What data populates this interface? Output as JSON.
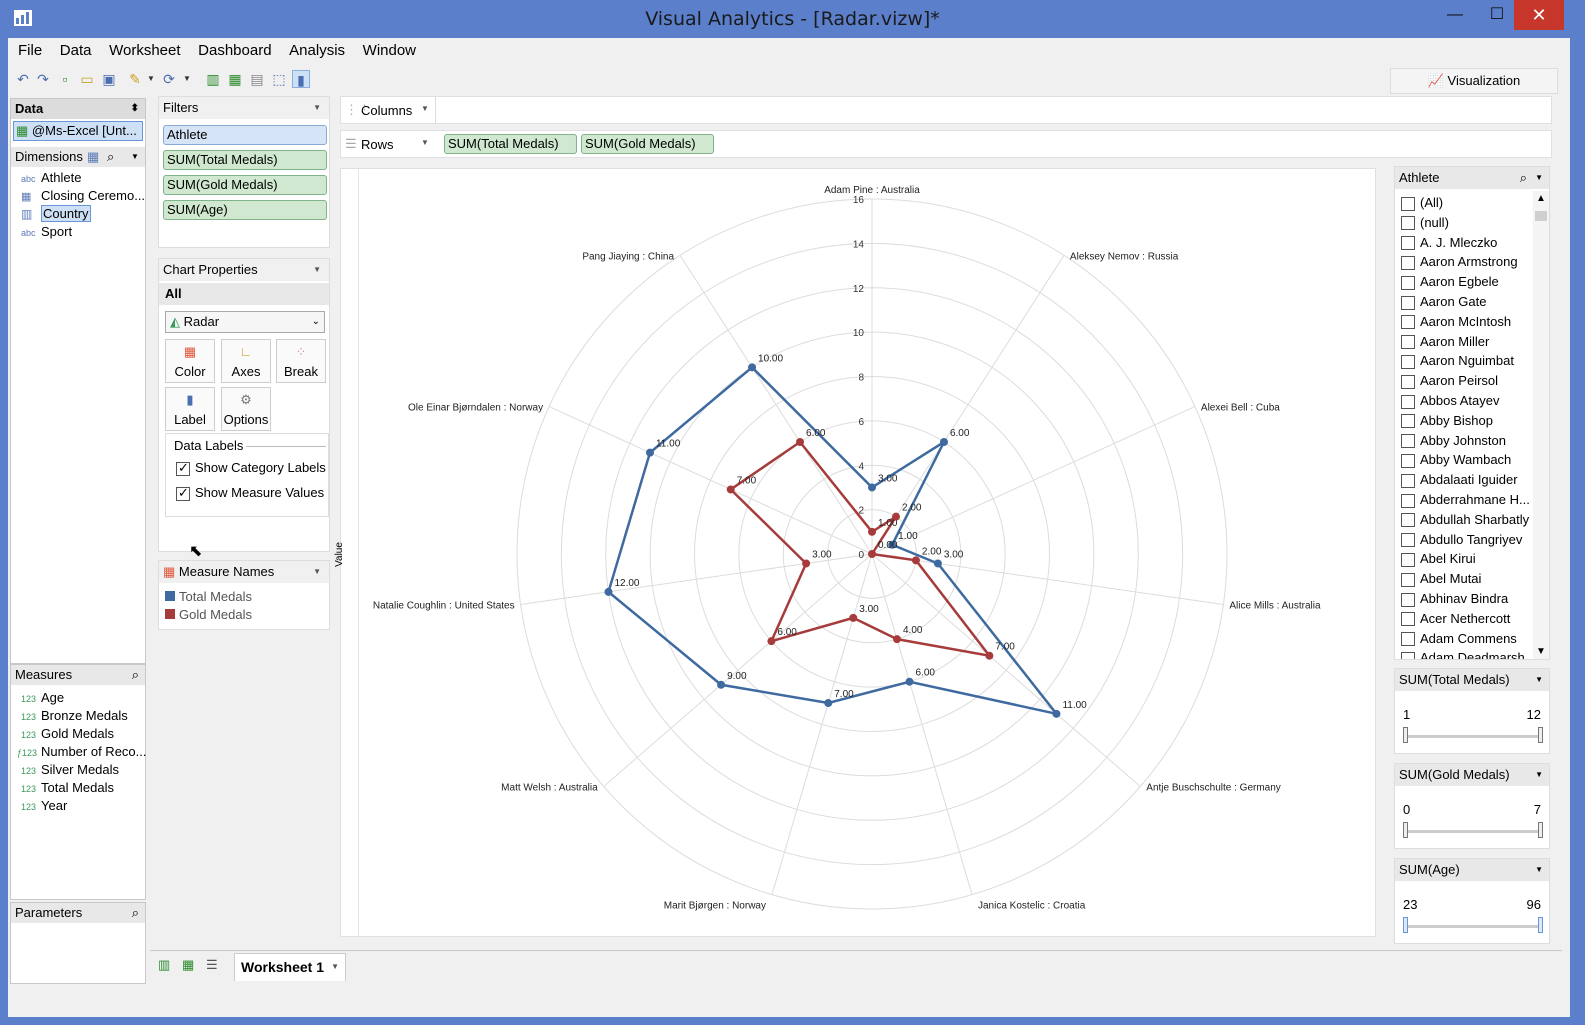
{
  "window": {
    "title": "Visual Analytics - [Radar.vizw]*",
    "min": "—",
    "max": "☐",
    "close": "✕"
  },
  "menu": [
    "File",
    "Data",
    "Worksheet",
    "Dashboard",
    "Analysis",
    "Window"
  ],
  "visualization_button": "Visualization",
  "data_panel": {
    "title": "Data",
    "source": "@Ms-Excel [Unt...",
    "dimensions_title": "Dimensions",
    "dimensions": [
      {
        "type": "abc",
        "name": "Athlete"
      },
      {
        "type": "cal",
        "name": "Closing Ceremo..."
      },
      {
        "type": "geo",
        "name": "Country"
      },
      {
        "type": "abc",
        "name": "Sport"
      }
    ],
    "measures_title": "Measures",
    "measures": [
      {
        "type": "123",
        "name": "Age"
      },
      {
        "type": "123",
        "name": "Bronze Medals"
      },
      {
        "type": "123",
        "name": "Gold Medals"
      },
      {
        "type": "f123",
        "name": "Number of Reco..."
      },
      {
        "type": "123",
        "name": "Silver Medals"
      },
      {
        "type": "123",
        "name": "Total Medals"
      },
      {
        "type": "123",
        "name": "Year"
      }
    ],
    "parameters_title": "Parameters"
  },
  "filters": {
    "title": "Filters",
    "items": [
      "Athlete",
      "SUM(Total Medals)",
      "SUM(Gold Medals)",
      "SUM(Age)"
    ]
  },
  "chart_properties": {
    "title": "Chart Properties",
    "scope": "All",
    "chart_type": "Radar",
    "buttons": [
      "Color",
      "Axes",
      "Break",
      "Label",
      "Options"
    ],
    "data_labels_title": "Data Labels",
    "show_category_labels": "Show Category Labels",
    "show_measure_values": "Show Measure Values"
  },
  "measure_names": {
    "title": "Measure Names",
    "items": [
      {
        "name": "Total Medals",
        "color": "#3f6aa0"
      },
      {
        "name": "Gold Medals",
        "color": "#a63b3b"
      }
    ]
  },
  "shelves": {
    "columns_label": "Columns",
    "rows_label": "Rows",
    "rows": [
      "SUM(Total Medals)",
      "SUM(Gold Medals)"
    ]
  },
  "athlete_filter": {
    "title": "Athlete",
    "items": [
      "(All)",
      "(null)",
      "A. J. Mleczko",
      "Aaron Armstrong",
      "Aaron Egbele",
      "Aaron Gate",
      "Aaron McIntosh",
      "Aaron Miller",
      "Aaron Nguimbat",
      "Aaron Peirsol",
      "Abbos Atayev",
      "Abby Bishop",
      "Abby Johnston",
      "Abby Wambach",
      "Abdalaati Iguider",
      "Abderrahmane H...",
      "Abdullah Sharbatly",
      "Abdullo Tangriyev",
      "Abel Kirui",
      "Abel Mutai",
      "Abhinav Bindra",
      "Acer Nethercott",
      "Adam Commens",
      "Adam Deadmarsh"
    ]
  },
  "range_filters": [
    {
      "title": "SUM(Total Medals)",
      "min": "1",
      "max": "12"
    },
    {
      "title": "SUM(Gold Medals)",
      "min": "0",
      "max": "7"
    },
    {
      "title": "SUM(Age)",
      "min": "23",
      "max": "96"
    }
  ],
  "tabs": {
    "sheet": "Worksheet 1"
  },
  "chart_data": {
    "type": "radar",
    "ylabel": "Value",
    "rmax": 16,
    "ticks": [
      "0",
      "2",
      "4",
      "6",
      "8",
      "10",
      "12",
      "14",
      "16"
    ],
    "categories": [
      "Adam Pine : Australia",
      "Aleksey Nemov : Russia",
      "Alexei Bell : Cuba",
      "Alice Mills : Australia",
      "Antje Buschschulte : Germany",
      "Janica Kostelic : Croatia",
      "Marit Bjørgen : Norway",
      "Matt Welsh : Australia",
      "Natalie Coughlin : United States",
      "Ole Einar Bjørndalen : Norway",
      "Pang Jiaying : China"
    ],
    "series": [
      {
        "name": "Total Medals",
        "color": "#3f6aa0",
        "values": [
          3,
          6,
          1,
          3,
          11,
          6,
          7,
          9,
          12,
          11,
          10
        ],
        "labels": [
          "3.00",
          "6.00",
          "1.00",
          "3.00",
          "11.00",
          "6.00",
          "7.00",
          "9.00",
          "12.00",
          "11.00",
          "10.00"
        ]
      },
      {
        "name": "Gold Medals",
        "color": "#a63b3b",
        "values": [
          1,
          2,
          0,
          2,
          7,
          4,
          3,
          6,
          3,
          7,
          6
        ],
        "labels": [
          "1.00",
          "2.00",
          "0.00",
          "2.00",
          "7.00",
          "4.00",
          "3.00",
          "6.00",
          "3.00",
          "7.00",
          "6.00"
        ]
      }
    ]
  }
}
